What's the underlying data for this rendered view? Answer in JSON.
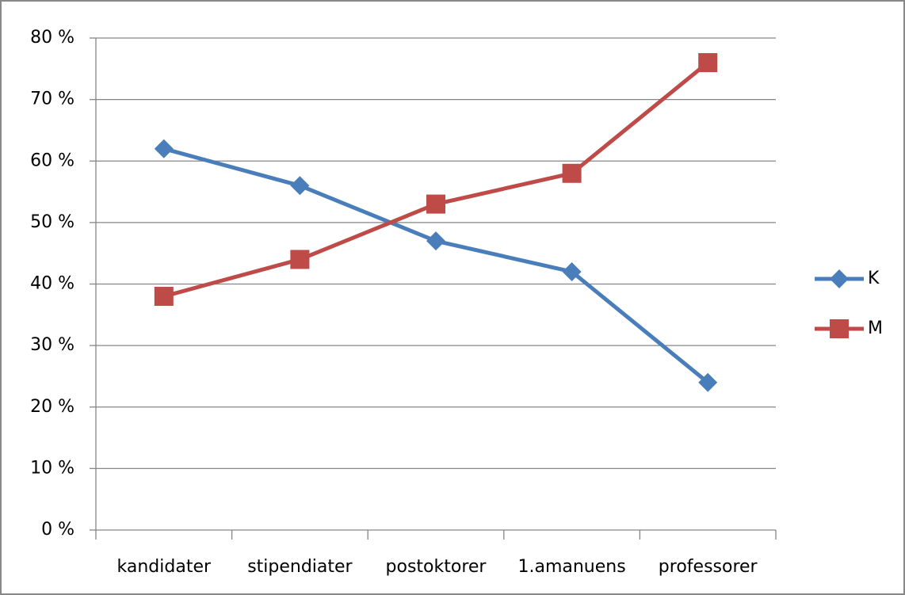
{
  "chart_data": {
    "type": "line",
    "categories": [
      "kandidater",
      "stipendiater",
      "postoktorer",
      "1.amanuens",
      "professorer"
    ],
    "series": [
      {
        "name": "K",
        "color": "#4a7ebb",
        "marker": "diamond",
        "values": [
          62,
          56,
          47,
          42,
          24
        ]
      },
      {
        "name": "M",
        "color": "#be4b48",
        "marker": "square",
        "values": [
          38,
          44,
          53,
          58,
          76
        ]
      }
    ],
    "ylim": [
      0,
      80
    ],
    "yticks": [
      {
        "value": 0,
        "label": "0 %"
      },
      {
        "value": 10,
        "label": "10 %"
      },
      {
        "value": 20,
        "label": "20 %"
      },
      {
        "value": 30,
        "label": "30 %"
      },
      {
        "value": 40,
        "label": "40 %"
      },
      {
        "value": 50,
        "label": "50 %"
      },
      {
        "value": 60,
        "label": "60 %"
      },
      {
        "value": 70,
        "label": "70 %"
      },
      {
        "value": 80,
        "label": "80 %"
      }
    ],
    "grid": true,
    "legend": "right"
  }
}
